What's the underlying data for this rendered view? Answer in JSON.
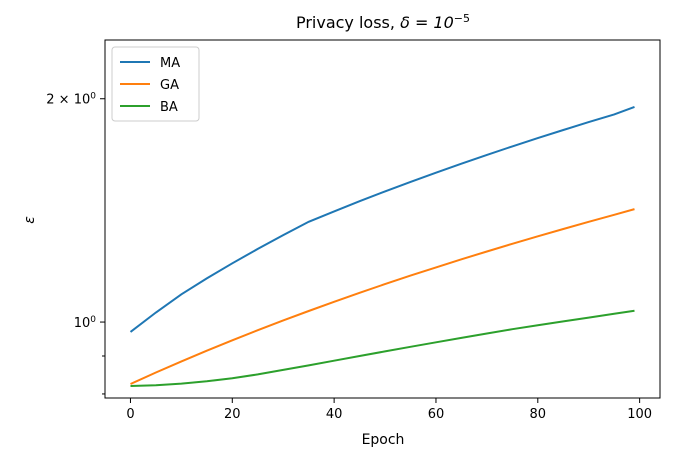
{
  "chart_data": {
    "type": "line",
    "title_main": "Privacy loss, ",
    "title_delta": "δ = 10",
    "title_exp": "−5",
    "xlabel": "Epoch",
    "ylabel": "ε",
    "y_scale": "log",
    "xlim": [
      -5,
      104
    ],
    "ylim": [
      0.79,
      2.4
    ],
    "x_ticks": [
      0,
      20,
      40,
      60,
      80,
      100
    ],
    "y_major_ticks": [
      {
        "value": 1.0,
        "label_base": "10",
        "label_exp": "0"
      },
      {
        "value": 2.0,
        "label_base": "2 × 10",
        "label_exp": "0"
      }
    ],
    "y_minor_ticks": [
      0.8,
      0.9
    ],
    "grid": false,
    "legend_position": "top-left",
    "series": [
      {
        "name": "MA",
        "color": "#1f77b4",
        "x": [
          0,
          5,
          10,
          15,
          20,
          25,
          30,
          35,
          40,
          45,
          50,
          55,
          60,
          65,
          70,
          75,
          80,
          85,
          90,
          95,
          99
        ],
        "y": [
          0.97,
          1.03,
          1.09,
          1.145,
          1.2,
          1.255,
          1.31,
          1.365,
          1.41,
          1.455,
          1.5,
          1.545,
          1.59,
          1.635,
          1.68,
          1.725,
          1.77,
          1.815,
          1.86,
          1.905,
          1.95
        ]
      },
      {
        "name": "GA",
        "color": "#ff7f0e",
        "x": [
          0,
          5,
          10,
          15,
          20,
          25,
          30,
          35,
          40,
          45,
          50,
          55,
          60,
          65,
          70,
          75,
          80,
          85,
          90,
          95,
          99
        ],
        "y": [
          0.825,
          0.855,
          0.885,
          0.915,
          0.945,
          0.975,
          1.005,
          1.035,
          1.065,
          1.095,
          1.125,
          1.155,
          1.185,
          1.215,
          1.245,
          1.275,
          1.305,
          1.335,
          1.365,
          1.395,
          1.42
        ]
      },
      {
        "name": "BA",
        "color": "#2ca02c",
        "x": [
          0,
          5,
          10,
          15,
          20,
          25,
          30,
          35,
          40,
          45,
          50,
          55,
          60,
          65,
          70,
          75,
          80,
          85,
          90,
          95,
          99
        ],
        "y": [
          0.82,
          0.822,
          0.826,
          0.832,
          0.84,
          0.85,
          0.862,
          0.874,
          0.887,
          0.9,
          0.913,
          0.926,
          0.939,
          0.952,
          0.965,
          0.978,
          0.99,
          1.002,
          1.014,
          1.026,
          1.036
        ]
      }
    ]
  }
}
